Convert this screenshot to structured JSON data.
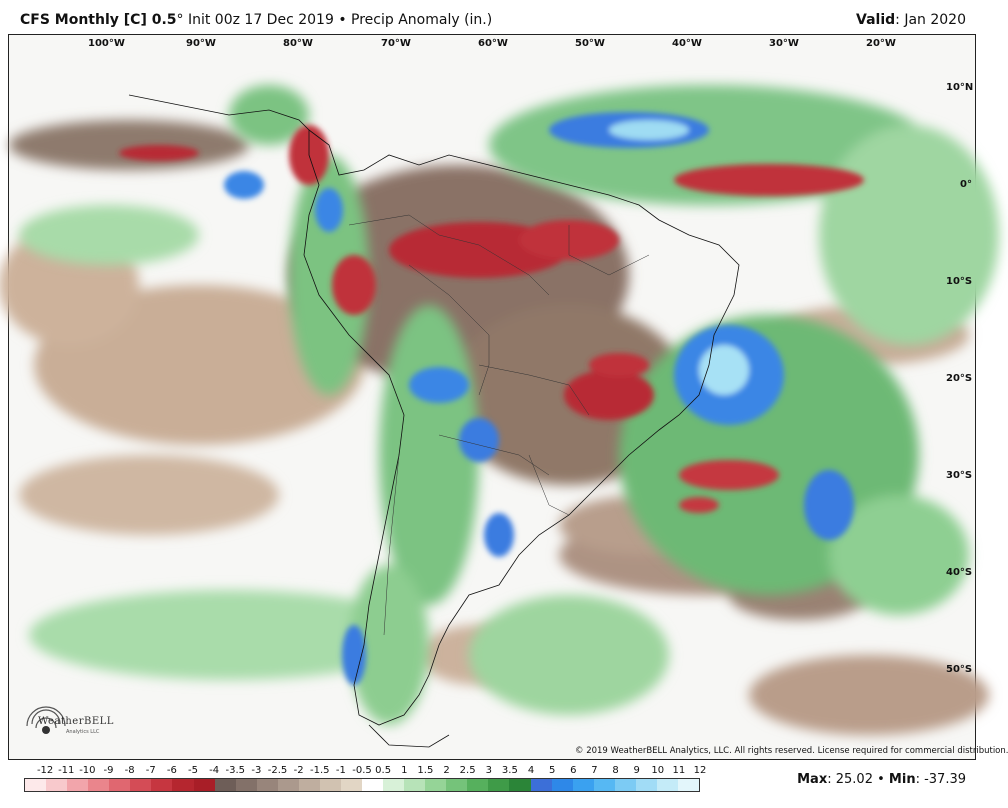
{
  "header": {
    "model": "CFS Monthly [C] 0.5",
    "degree": "°",
    "init": "Init 00z 17 Dec 2019",
    "bullet": "•",
    "product": "Precip Anomaly (in.)",
    "valid_label": "Valid",
    "valid_value": ": Jan 2020"
  },
  "longitudes": [
    "100°W",
    "90°W",
    "80°W",
    "70°W",
    "60°W",
    "50°W",
    "40°W",
    "30°W",
    "20°W"
  ],
  "latitudes": [
    "10°N",
    "0°",
    "10°S",
    "20°S",
    "30°S",
    "40°S",
    "50°S"
  ],
  "copyright": "© 2019 WeatherBELL Analytics, LLC. All rights reserved. License required for commercial distribution.",
  "logo_text": "WeatherBELL",
  "logo_sub": "Analytics LLC",
  "legend": {
    "labels": [
      "-12",
      "-11",
      "-10",
      "-9",
      "-8",
      "-7",
      "-6",
      "-5",
      "-4",
      "-3.5",
      "-3",
      "-2.5",
      "-2",
      "-1.5",
      "-1",
      "-0.5",
      "0.5",
      "1",
      "1.5",
      "2",
      "2.5",
      "3",
      "3.5",
      "4",
      "5",
      "6",
      "7",
      "8",
      "9",
      "10",
      "11",
      "12"
    ],
    "colors": [
      "#fde9ea",
      "#f8c9cc",
      "#f2a5ab",
      "#ea858c",
      "#e06770",
      "#d44c56",
      "#c63640",
      "#b5262f",
      "#a81e27",
      "#6e5e58",
      "#837169",
      "#98857b",
      "#ab998d",
      "#bfae9f",
      "#d1c2b1",
      "#e2d6c5",
      "#ffffff",
      "#d8f1d8",
      "#b7e3b8",
      "#95d497",
      "#75c37a",
      "#56b05d",
      "#3f9b48",
      "#2b8538",
      "#3c6fd8",
      "#2e88e8",
      "#3aa1f0",
      "#56b8f3",
      "#7ccbf4",
      "#a1dcf6",
      "#c4ebf8",
      "#e3f6fb"
    ]
  },
  "stats": {
    "max_label": "Max",
    "max_value": ": 25.02",
    "bullet": "•",
    "min_label": "Min",
    "min_value": ": -37.39"
  }
}
